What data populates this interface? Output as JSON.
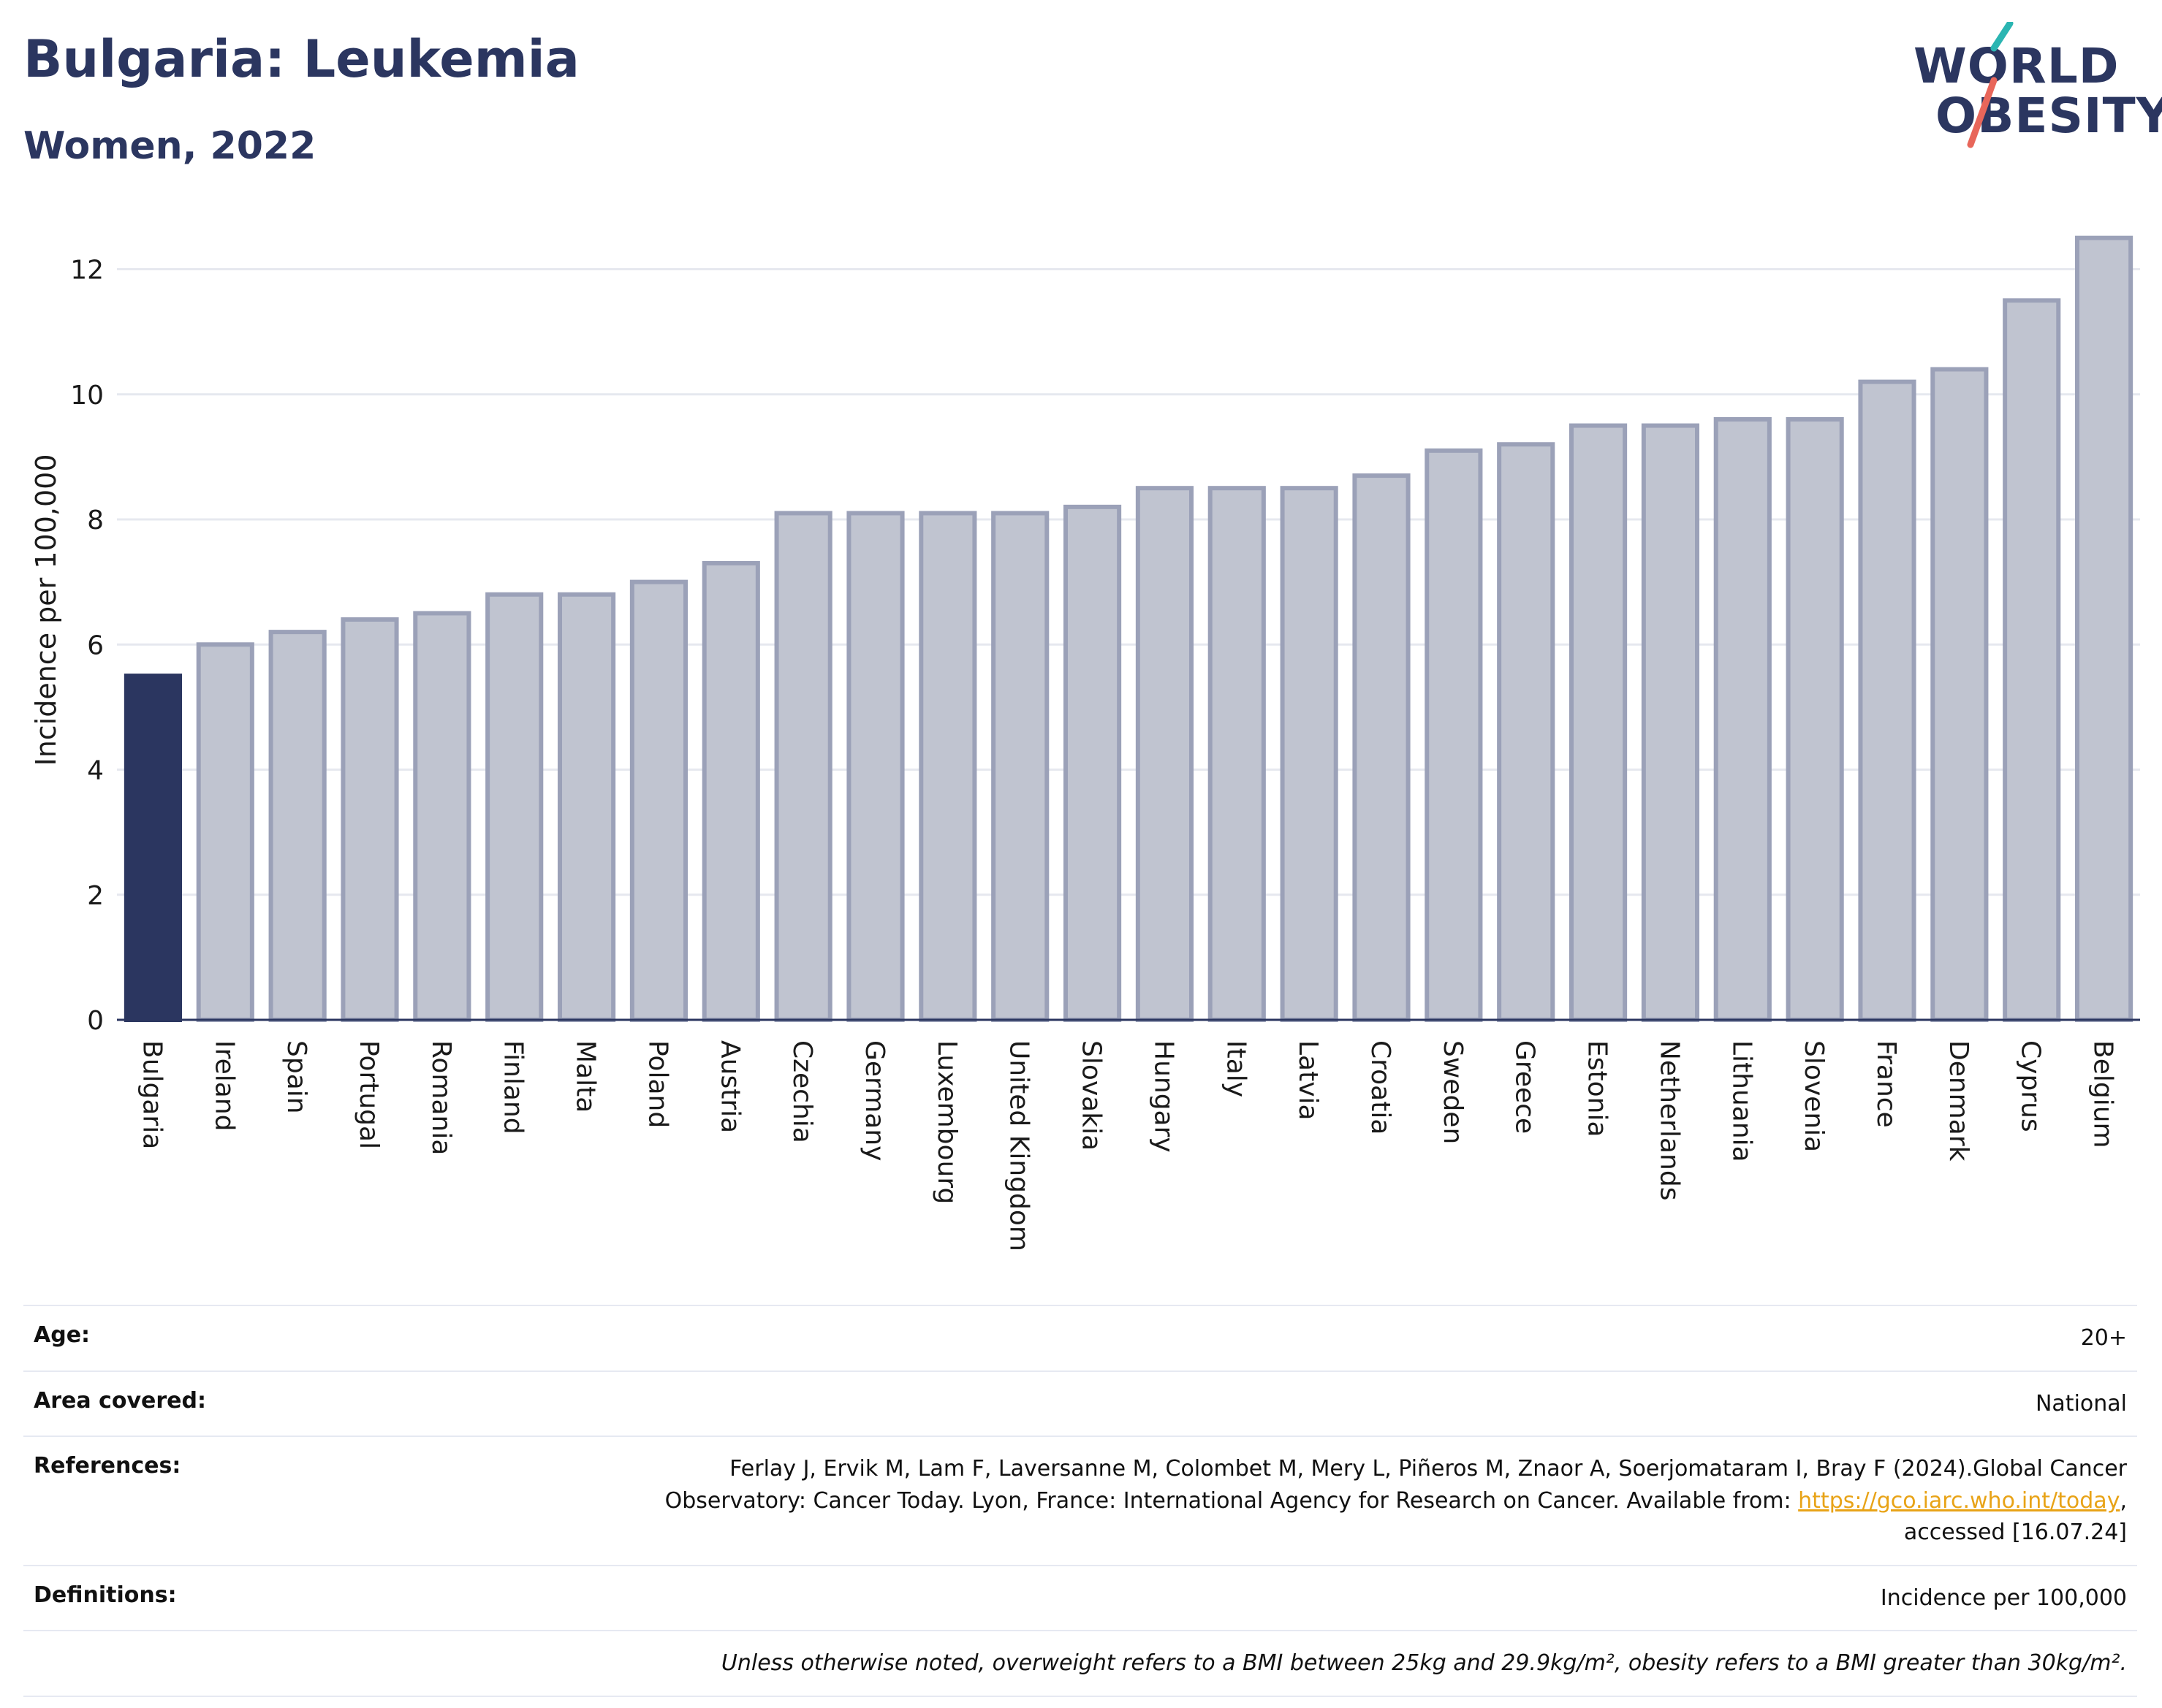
{
  "header": {
    "title": "Bulgaria: Leukemia",
    "subtitle": "Women, 2022"
  },
  "logo": {
    "line1": "WORLD",
    "line2": "OBESITY",
    "colors": {
      "text": "#2b3660",
      "slash_top": "#2bb5b2",
      "slash_bottom": "#e8665a"
    }
  },
  "colors": {
    "highlight_bar": "#2b3660",
    "other_bar_fill": "#c0c4d0",
    "other_bar_stroke": "#9ba1b8",
    "grid": "#e6e8ef"
  },
  "chart_data": {
    "type": "bar",
    "ylabel": "Incidence per 100,000",
    "xlabel": "",
    "ylim": [
      0,
      12.8
    ],
    "yticks": [
      0,
      2,
      4,
      6,
      8,
      10,
      12
    ],
    "grid": true,
    "highlight": "Bulgaria",
    "categories": [
      "Bulgaria",
      "Ireland",
      "Spain",
      "Portugal",
      "Romania",
      "Finland",
      "Malta",
      "Poland",
      "Austria",
      "Czechia",
      "Germany",
      "Luxembourg",
      "United Kingdom",
      "Slovakia",
      "Hungary",
      "Italy",
      "Latvia",
      "Croatia",
      "Sweden",
      "Greece",
      "Estonia",
      "Netherlands",
      "Lithuania",
      "Slovenia",
      "France",
      "Denmark",
      "Cyprus",
      "Belgium"
    ],
    "values": [
      5.5,
      6.0,
      6.2,
      6.4,
      6.5,
      6.8,
      6.8,
      7.0,
      7.3,
      8.1,
      8.1,
      8.1,
      8.1,
      8.2,
      8.5,
      8.5,
      8.5,
      8.7,
      9.1,
      9.2,
      9.5,
      9.5,
      9.6,
      9.6,
      10.2,
      10.4,
      11.5,
      12.5
    ]
  },
  "meta": {
    "age_label": "Age:",
    "age_value": "20+",
    "area_label": "Area covered:",
    "area_value": "National",
    "references_label": "References:",
    "references_line1": "Ferlay J, Ervik M, Lam F, Laversanne M, Colombet M, Mery L, Piñeros M, Znaor A, Soerjomataram I, Bray F (2024).Global Cancer",
    "references_line2_prefix": "Observatory: Cancer Today. Lyon, France: International Agency for Research on Cancer. Available from: ",
    "references_link": "https://gco.iarc.who.int/today",
    "references_line2_suffix": ",",
    "references_line3": "accessed [16.07.24]",
    "definitions_label": "Definitions:",
    "definitions_value": "Incidence per 100,000",
    "note": "Unless otherwise noted, overweight refers to a BMI between 25kg and 29.9kg/m², obesity refers to a BMI greater than 30kg/m²."
  }
}
